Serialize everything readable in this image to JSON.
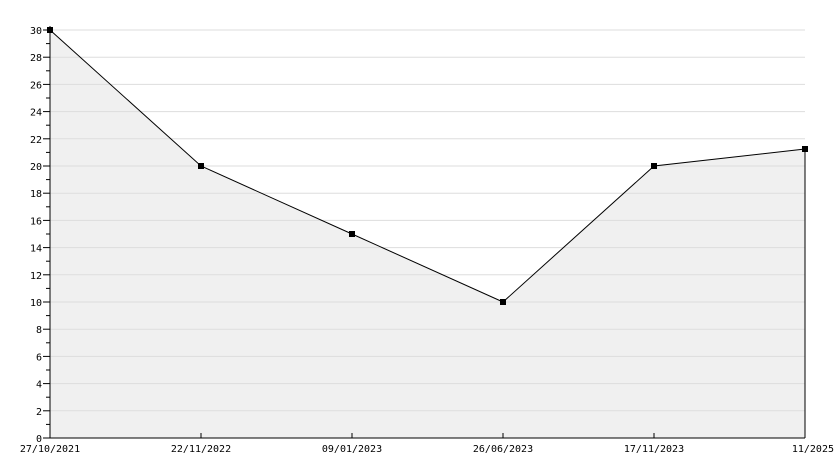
{
  "chart_data": {
    "type": "area",
    "categories": [
      "27/10/2021",
      "22/11/2022",
      "09/01/2023",
      "26/06/2023",
      "17/11/2023",
      "11/2025"
    ],
    "values": [
      30,
      20,
      15,
      10,
      20,
      21.25
    ],
    "ylim": [
      0,
      30
    ],
    "yticks": [
      "0",
      "2",
      "4",
      "6",
      "8",
      "10",
      "12",
      "14",
      "16",
      "18",
      "20",
      "22",
      "24",
      "26",
      "28",
      "30"
    ],
    "grid": true,
    "colors": {
      "line": "#000000",
      "fill": "#f0f0f0",
      "grid": "#dddddd"
    }
  }
}
